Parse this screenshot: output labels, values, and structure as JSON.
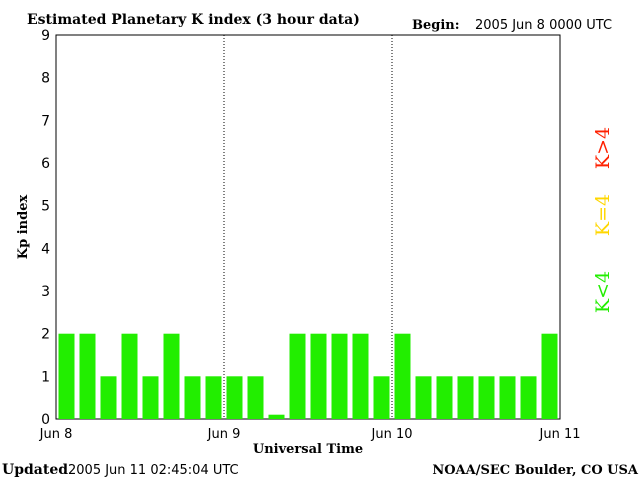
{
  "header": {
    "title": "Estimated Planetary K index (3 hour data)",
    "begin_label": "Begin:",
    "begin_value": "2005 Jun 8 0000 UTC"
  },
  "footer": {
    "updated_label": "Updated",
    "updated_value": "2005 Jun 11 02:45:04 UTC",
    "credit": "NOAA/SEC Boulder, CO USA"
  },
  "legend": {
    "items": [
      {
        "label": "K>4",
        "color": "#ff2000"
      },
      {
        "label": "K=4",
        "color": "#ffd700"
      },
      {
        "label": "K<4",
        "color": "#22ee00"
      }
    ]
  },
  "chart_data": {
    "type": "bar",
    "xlabel": "Universal Time",
    "ylabel": "Kp index",
    "ylim": [
      0,
      9
    ],
    "y_ticks": [
      "0",
      "1",
      "2",
      "3",
      "4",
      "5",
      "6",
      "7",
      "8",
      "9"
    ],
    "x_ticks": [
      "Jun 8",
      "Jun 9",
      "Jun 10",
      "Jun 11"
    ],
    "bar_color": "#22ee00",
    "values": [
      2,
      2,
      1,
      2,
      1,
      2,
      1,
      1,
      1,
      1,
      0.1,
      2,
      2,
      2,
      2,
      1,
      2,
      1,
      1,
      1,
      1,
      1,
      1,
      2
    ]
  }
}
